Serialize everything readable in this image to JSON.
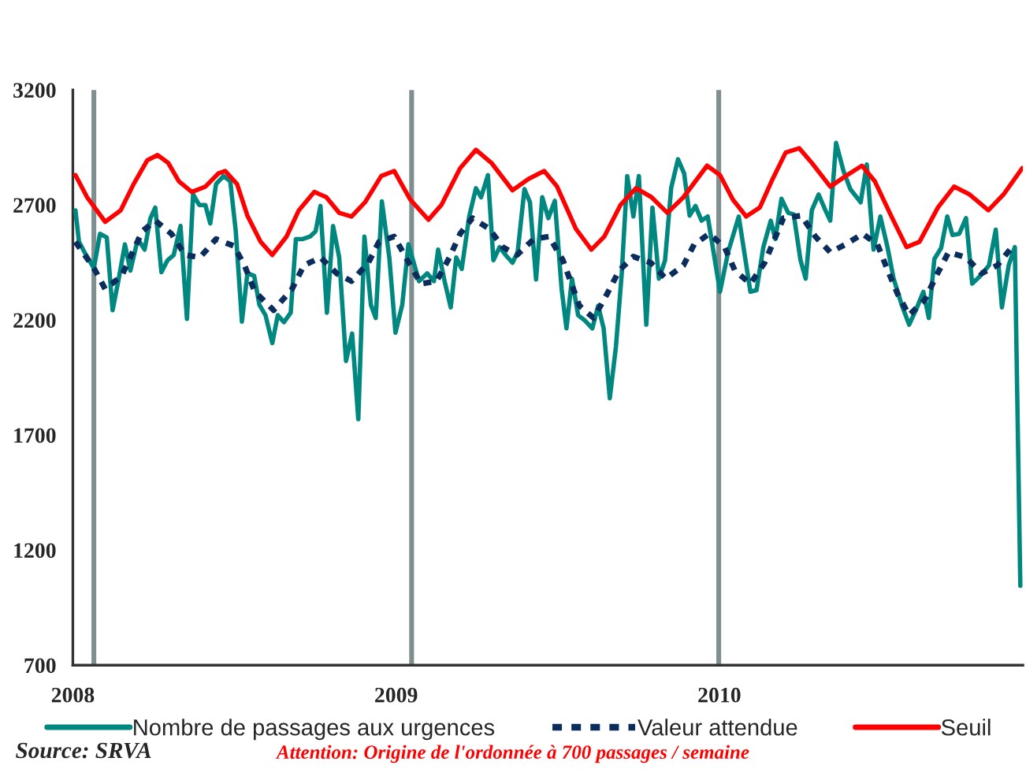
{
  "chart_data": {
    "type": "line",
    "xlim": [
      2008,
      2010.939
    ],
    "xticks": [
      2008,
      2009,
      2010
    ],
    "ylim": [
      700,
      3200
    ],
    "yticks": [
      700,
      1200,
      1700,
      2200,
      2700,
      3200
    ],
    "grid": false,
    "legend": "bottom",
    "ref_lines": [
      {
        "axis": "x",
        "value": 2008.065,
        "color": "#7f8f8f"
      },
      {
        "axis": "x",
        "value": 2009.048,
        "color": "#7f8f8f"
      },
      {
        "axis": "x",
        "value": 2009.998,
        "color": "#7f8f8f"
      }
    ],
    "annotations": [
      "Source: SRVA",
      "Attention: Origine de l'ordonnée à 700 passages / semaine"
    ],
    "series": [
      {
        "name": "Nombre de passages aux urgences",
        "color": "#00877f",
        "line_style": "solid",
        "x": [
          2008.008,
          2008.019,
          2008.036,
          2008.065,
          2008.084,
          2008.105,
          2008.123,
          2008.142,
          2008.161,
          2008.178,
          2008.201,
          2008.222,
          2008.24,
          2008.255,
          2008.274,
          2008.293,
          2008.312,
          2008.333,
          2008.353,
          2008.372,
          2008.391,
          2008.41,
          2008.425,
          2008.443,
          2008.466,
          2008.487,
          2008.504,
          2008.523,
          2008.54,
          2008.561,
          2008.577,
          2008.596,
          2008.617,
          2008.634,
          2008.653,
          2008.674,
          2008.69,
          2008.711,
          2008.734,
          2008.751,
          2008.766,
          2008.786,
          2008.805,
          2008.824,
          2008.845,
          2008.864,
          2008.883,
          2008.902,
          2008.922,
          2008.937,
          2008.956,
          2008.979,
          2008.998,
          2009.019,
          2009.038,
          2009.071,
          2009.096,
          2009.117,
          2009.13,
          2009.15,
          2009.169,
          2009.186,
          2009.203,
          2009.226,
          2009.247,
          2009.263,
          2009.284,
          2009.301,
          2009.32,
          2009.341,
          2009.36,
          2009.376,
          2009.397,
          2009.414,
          2009.433,
          2009.452,
          2009.471,
          2009.491,
          2009.512,
          2009.527,
          2009.544,
          2009.563,
          2009.584,
          2009.607,
          2009.625,
          2009.642,
          2009.661,
          2009.68,
          2009.698,
          2009.715,
          2009.734,
          2009.751,
          2009.774,
          2009.793,
          2009.813,
          2009.832,
          2009.851,
          2009.872,
          2009.891,
          2009.908,
          2009.926,
          2009.945,
          2009.964,
          2010.002,
          2010.027,
          2010.06,
          2010.096,
          2010.115,
          2010.136,
          2010.159,
          2010.173,
          2010.192,
          2010.213,
          2010.23,
          2010.251,
          2010.267,
          2010.286,
          2010.307,
          2010.328,
          2010.343,
          2010.361,
          2010.384,
          2010.405,
          2010.437,
          2010.456,
          2010.477,
          2010.498,
          2010.52,
          2010.539,
          2010.564,
          2010.587,
          2010.608,
          2010.631,
          2010.648,
          2010.665,
          2010.686,
          2010.705,
          2010.721,
          2010.742,
          2010.763,
          2010.782,
          2010.807,
          2010.834,
          2010.855,
          2010.874,
          2010.895,
          2010.914,
          2010.931
        ],
        "values": [
          2677,
          2540,
          2495,
          2426,
          2575,
          2559,
          2243,
          2380,
          2529,
          2415,
          2552,
          2506,
          2643,
          2689,
          2408,
          2460,
          2483,
          2609,
          2205,
          2746,
          2700,
          2700,
          2620,
          2791,
          2826,
          2803,
          2586,
          2193,
          2403,
          2392,
          2266,
          2221,
          2100,
          2221,
          2191,
          2232,
          2552,
          2552,
          2563,
          2586,
          2696,
          2232,
          2609,
          2472,
          2022,
          2141,
          1769,
          2563,
          2266,
          2209,
          2716,
          2472,
          2145,
          2266,
          2529,
          2369,
          2403,
          2369,
          2506,
          2369,
          2255,
          2472,
          2422,
          2650,
          2773,
          2734,
          2830,
          2460,
          2517,
          2479,
          2449,
          2495,
          2769,
          2712,
          2376,
          2734,
          2643,
          2718,
          2335,
          2164,
          2380,
          2221,
          2198,
          2164,
          2262,
          2164,
          1860,
          2084,
          2403,
          2826,
          2650,
          2826,
          2180,
          2689,
          2380,
          2460,
          2775,
          2899,
          2837,
          2654,
          2696,
          2632,
          2650,
          2323,
          2495,
          2650,
          2323,
          2330,
          2517,
          2632,
          2552,
          2727,
          2666,
          2659,
          2460,
          2380,
          2677,
          2746,
          2677,
          2632,
          2970,
          2848,
          2769,
          2712,
          2876,
          2506,
          2650,
          2517,
          2380,
          2266,
          2180,
          2243,
          2323,
          2209,
          2465,
          2513,
          2650,
          2570,
          2575,
          2643,
          2358,
          2392,
          2438,
          2593,
          2255,
          2438,
          2517,
          1045
        ]
      },
      {
        "name": "Valeur attendue",
        "color": "#0b2d5e",
        "line_style": "dotted",
        "x": [
          2008.008,
          2008.065,
          2008.1,
          2008.151,
          2008.215,
          2008.255,
          2008.305,
          2008.347,
          2008.393,
          2008.443,
          2008.498,
          2008.531,
          2008.563,
          2008.621,
          2008.678,
          2008.715,
          2008.766,
          2008.816,
          2008.862,
          2008.914,
          2008.947,
          2008.994,
          2009.035,
          2009.077,
          2009.125,
          2009.165,
          2009.198,
          2009.236,
          2009.288,
          2009.33,
          2009.374,
          2009.426,
          2009.473,
          2009.516,
          2009.567,
          2009.611,
          2009.652,
          2009.69,
          2009.734,
          2009.788,
          2009.834,
          2009.889,
          2009.922,
          2009.969,
          2010.016,
          2010.048,
          2010.096,
          2010.14,
          2010.198,
          2010.253,
          2010.297,
          2010.343,
          2010.391,
          2010.443,
          2010.489,
          2010.521,
          2010.552,
          2010.587,
          2010.636,
          2010.671,
          2010.709,
          2010.763,
          2010.811,
          2010.86,
          2010.905
        ],
        "values": [
          2540,
          2426,
          2335,
          2392,
          2586,
          2632,
          2575,
          2483,
          2472,
          2552,
          2522,
          2438,
          2323,
          2243,
          2335,
          2438,
          2472,
          2403,
          2369,
          2449,
          2540,
          2563,
          2460,
          2358,
          2369,
          2472,
          2575,
          2643,
          2597,
          2517,
          2483,
          2552,
          2563,
          2460,
          2262,
          2209,
          2312,
          2415,
          2476,
          2449,
          2380,
          2438,
          2529,
          2575,
          2517,
          2415,
          2358,
          2449,
          2643,
          2654,
          2563,
          2495,
          2529,
          2575,
          2529,
          2415,
          2312,
          2221,
          2289,
          2392,
          2495,
          2472,
          2403,
          2438,
          2517
        ]
      },
      {
        "name": "Seuil",
        "color": "#ff0000",
        "line_style": "solid",
        "x": [
          2008.008,
          2008.044,
          2008.1,
          2008.148,
          2008.188,
          2008.23,
          2008.262,
          2008.295,
          2008.328,
          2008.368,
          2008.41,
          2008.45,
          2008.471,
          2008.508,
          2008.54,
          2008.581,
          2008.617,
          2008.661,
          2008.699,
          2008.747,
          2008.784,
          2008.824,
          2008.862,
          2008.904,
          2008.954,
          2008.994,
          2009.044,
          2009.1,
          2009.14,
          2009.198,
          2009.247,
          2009.295,
          2009.36,
          2009.41,
          2009.458,
          2009.498,
          2009.556,
          2009.604,
          2009.644,
          2009.694,
          2009.742,
          2009.79,
          2009.839,
          2009.889,
          2009.962,
          2010.002,
          2010.042,
          2010.083,
          2010.125,
          2010.165,
          2010.205,
          2010.247,
          2010.286,
          2010.343,
          2010.391,
          2010.441,
          2010.481,
          2010.531,
          2010.579,
          2010.619,
          2010.676,
          2010.726,
          2010.774,
          2010.832,
          2010.879,
          2010.937
        ],
        "values": [
          2830,
          2734,
          2627,
          2677,
          2791,
          2894,
          2917,
          2883,
          2803,
          2757,
          2780,
          2837,
          2848,
          2791,
          2654,
          2540,
          2483,
          2563,
          2677,
          2757,
          2734,
          2666,
          2650,
          2712,
          2826,
          2848,
          2723,
          2636,
          2700,
          2860,
          2940,
          2883,
          2764,
          2814,
          2848,
          2780,
          2597,
          2506,
          2563,
          2700,
          2773,
          2734,
          2666,
          2734,
          2871,
          2830,
          2723,
          2650,
          2689,
          2814,
          2928,
          2947,
          2883,
          2780,
          2826,
          2871,
          2803,
          2654,
          2517,
          2540,
          2689,
          2780,
          2746,
          2677,
          2746,
          2860
        ]
      }
    ]
  }
}
